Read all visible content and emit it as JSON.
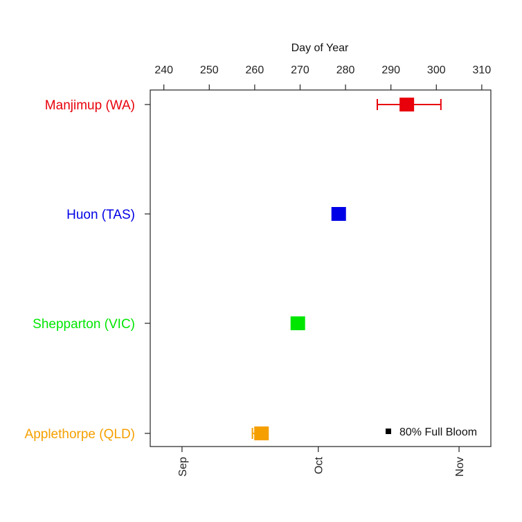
{
  "chart_data": {
    "type": "dot-errorbar",
    "top_axis_title": "Day of Year",
    "x_ticks": [
      240,
      250,
      260,
      270,
      280,
      290,
      300,
      310
    ],
    "xlim": [
      237,
      312
    ],
    "month_ticks": [
      {
        "label": "Sep",
        "day": 244
      },
      {
        "label": "Oct",
        "day": 274
      },
      {
        "label": "Nov",
        "day": 305
      }
    ],
    "categories": [
      {
        "label": "Manjimup (WA)",
        "color": "#e8000b",
        "value": 293.5,
        "error_low": 287,
        "error_high": 301
      },
      {
        "label": "Huon (TAS)",
        "color": "#0000e6",
        "value": 278.5,
        "error_low": null,
        "error_high": null
      },
      {
        "label": "Shepparton (VIC)",
        "color": "#00e600",
        "value": 269.5,
        "error_low": null,
        "error_high": null
      },
      {
        "label": "Applethorpe (QLD)",
        "color": "#f5a000",
        "value": 261.5,
        "error_low": 259.5,
        "error_high": null
      }
    ],
    "legend": {
      "label": "80% Full Bloom",
      "position": "bottom-right"
    }
  }
}
